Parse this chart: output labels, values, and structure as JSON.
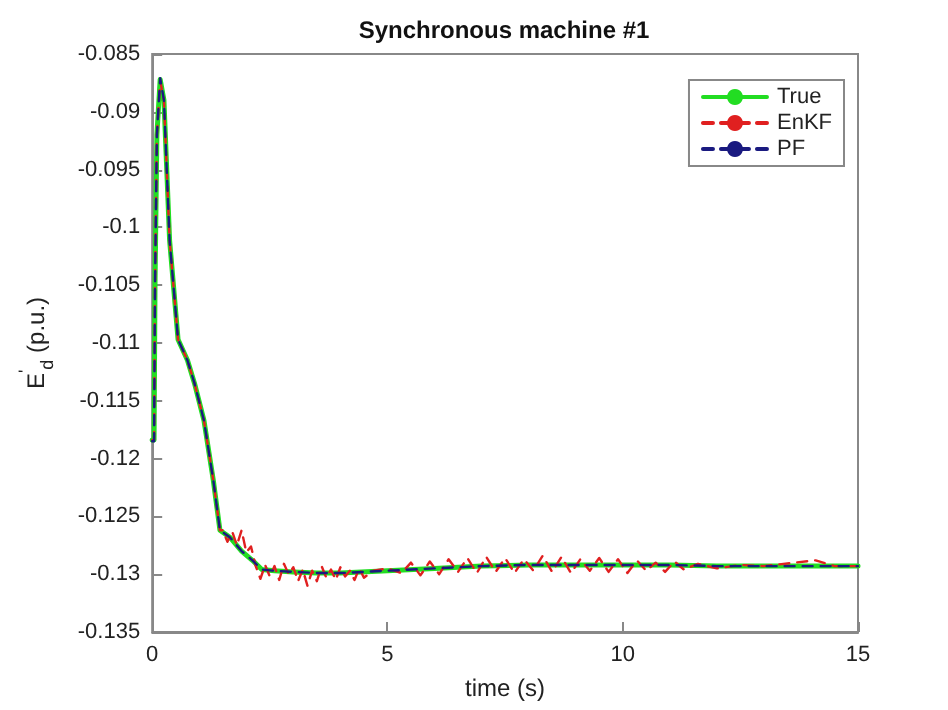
{
  "chart_data": {
    "type": "line",
    "title": "Synchronous machine #1",
    "xlabel": "time (s)",
    "ylabel": "E$^{'}$$_{d}$ (p.u.)",
    "xlim": [
      0,
      15
    ],
    "xticks": [
      0,
      5,
      10,
      15
    ],
    "ylim": [
      -0.135,
      -0.085
    ],
    "yticks": [
      -0.135,
      -0.13,
      -0.125,
      -0.12,
      -0.115,
      -0.11,
      -0.105,
      -0.1,
      -0.095,
      -0.09,
      -0.085
    ],
    "grid": false,
    "legend": "top right",
    "marker": "none",
    "series": [
      {
        "name": "True",
        "color": "#22dd22",
        "line_style": "solid",
        "x": [
          0,
          0.04,
          0.06,
          0.1,
          0.17,
          0.25,
          0.37,
          0.55,
          0.75,
          0.9,
          1.1,
          1.3,
          1.44,
          1.65,
          1.9,
          2.13,
          2.33,
          2.6,
          3,
          3.5,
          4,
          5,
          6,
          7,
          8,
          9,
          10,
          11,
          12,
          13,
          15
        ],
        "values": [
          -0.1184,
          -0.1184,
          -0.105,
          -0.092,
          -0.0872,
          -0.089,
          -0.1011,
          -0.1097,
          -0.1115,
          -0.1135,
          -0.1167,
          -0.1219,
          -0.1262,
          -0.1268,
          -0.128,
          -0.1288,
          -0.1296,
          -0.1297,
          -0.1298,
          -0.1299,
          -0.1299,
          -0.1297,
          -0.1295,
          -0.1293,
          -0.1292,
          -0.1292,
          -0.1292,
          -0.1292,
          -0.1293,
          -0.1293,
          -0.1293
        ]
      },
      {
        "name": "EnKF",
        "color": "#e02020",
        "line_style": "dashed",
        "x": [
          0,
          0.04,
          0.06,
          0.1,
          0.17,
          0.25,
          0.37,
          0.55,
          0.75,
          0.9,
          1.1,
          1.3,
          1.44,
          1.5,
          1.6,
          1.7,
          1.8,
          1.9,
          2.0,
          2.1,
          2.2,
          2.3,
          2.4,
          2.5,
          2.6,
          2.7,
          2.8,
          2.9,
          3.0,
          3.1,
          3.2,
          3.3,
          3.4,
          3.5,
          3.6,
          3.7,
          3.8,
          3.9,
          4.0,
          4.1,
          4.2,
          4.3,
          4.4,
          4.5,
          4.7,
          5.0,
          5.3,
          5.5,
          5.7,
          5.9,
          6.1,
          6.3,
          6.5,
          6.7,
          6.9,
          7.1,
          7.3,
          7.5,
          7.7,
          7.9,
          8.1,
          8.3,
          8.5,
          8.7,
          8.9,
          9.1,
          9.3,
          9.5,
          9.7,
          9.9,
          10.1,
          10.3,
          10.5,
          10.7,
          10.9,
          11.1,
          11.3,
          11.6,
          12.0,
          12.5,
          13,
          14.1,
          14.5,
          15
        ],
        "values": [
          -0.1184,
          -0.1184,
          -0.105,
          -0.092,
          -0.0873,
          -0.089,
          -0.1011,
          -0.1097,
          -0.1115,
          -0.1135,
          -0.1167,
          -0.1219,
          -0.1262,
          -0.1262,
          -0.1272,
          -0.1263,
          -0.1275,
          -0.1262,
          -0.1281,
          -0.1276,
          -0.1293,
          -0.1304,
          -0.1292,
          -0.1302,
          -0.1293,
          -0.1305,
          -0.1291,
          -0.13,
          -0.1294,
          -0.1306,
          -0.1296,
          -0.131,
          -0.1297,
          -0.1306,
          -0.1293,
          -0.1303,
          -0.1296,
          -0.1305,
          -0.1294,
          -0.1302,
          -0.1297,
          -0.1305,
          -0.1295,
          -0.1303,
          -0.1297,
          -0.1295,
          -0.1299,
          -0.129,
          -0.1301,
          -0.1289,
          -0.13,
          -0.1287,
          -0.1298,
          -0.1286,
          -0.1299,
          -0.1285,
          -0.1298,
          -0.1286,
          -0.1299,
          -0.1287,
          -0.1297,
          -0.1284,
          -0.1298,
          -0.1285,
          -0.1299,
          -0.1287,
          -0.1297,
          -0.1286,
          -0.1298,
          -0.1287,
          -0.1299,
          -0.1288,
          -0.1297,
          -0.129,
          -0.1298,
          -0.1289,
          -0.1296,
          -0.1291,
          -0.1295,
          -0.1292,
          -0.1293,
          -0.1288,
          -0.1293,
          -0.1293
        ]
      },
      {
        "name": "PF",
        "color": "#1a1a80",
        "line_style": "dashed",
        "x": [
          0,
          0.04,
          0.06,
          0.1,
          0.17,
          0.25,
          0.37,
          0.55,
          0.75,
          0.9,
          1.1,
          1.3,
          1.44,
          1.65,
          1.9,
          2.13,
          2.33,
          2.6,
          3,
          3.5,
          4,
          5,
          6,
          7,
          8,
          9,
          10,
          11,
          12,
          13,
          15
        ],
        "values": [
          -0.1185,
          -0.1185,
          -0.105,
          -0.092,
          -0.0871,
          -0.089,
          -0.1011,
          -0.1097,
          -0.1115,
          -0.1135,
          -0.1167,
          -0.1219,
          -0.1262,
          -0.1268,
          -0.128,
          -0.1288,
          -0.1296,
          -0.1297,
          -0.1298,
          -0.1299,
          -0.1299,
          -0.1297,
          -0.1295,
          -0.1293,
          -0.1292,
          -0.1292,
          -0.1292,
          -0.1292,
          -0.1293,
          -0.1293,
          -0.1293
        ]
      }
    ]
  }
}
